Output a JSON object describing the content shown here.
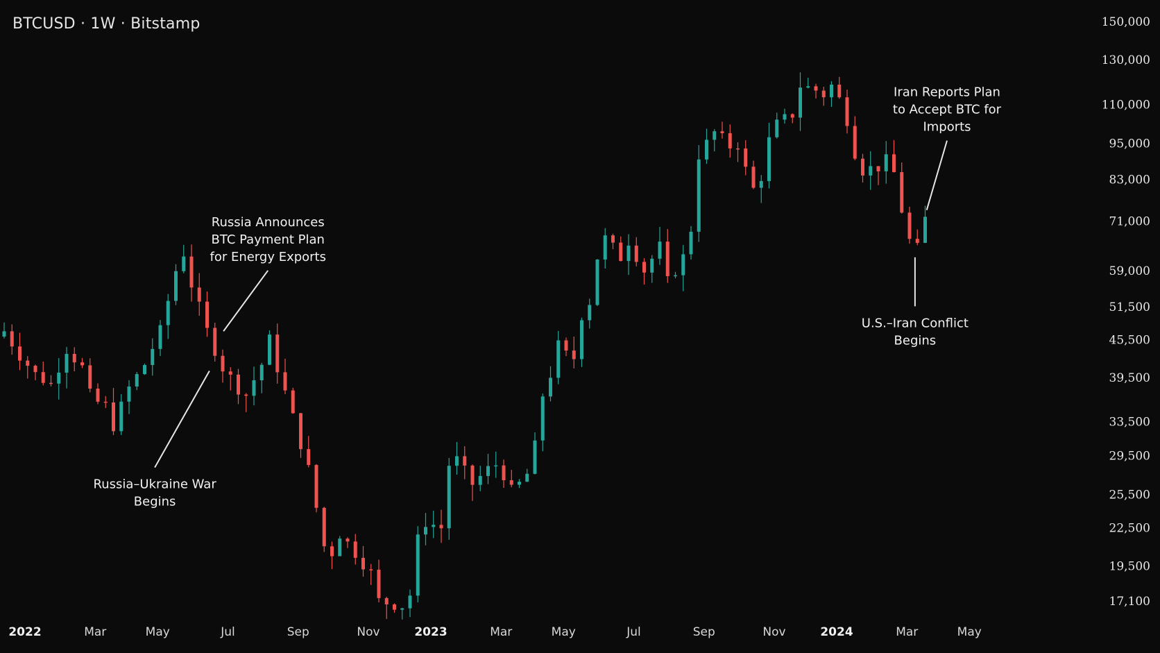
{
  "header": {
    "title": "BTCUSD · 1W · Bitstamp"
  },
  "chart_data": {
    "type": "candlestick",
    "symbol": "BTCUSD",
    "interval": "1W",
    "exchange": "Bitstamp",
    "y_scale": "log",
    "ylim": [
      16000,
      155000
    ],
    "grid": false,
    "y_ticks": [
      {
        "value": 150000,
        "label": "150,000"
      },
      {
        "value": 130000,
        "label": "130,000"
      },
      {
        "value": 110000,
        "label": "110,000"
      },
      {
        "value": 95000,
        "label": "95,000"
      },
      {
        "value": 83000,
        "label": "83,000"
      },
      {
        "value": 71000,
        "label": "71,000"
      },
      {
        "value": 59000,
        "label": "59,000"
      },
      {
        "value": 51500,
        "label": "51,500"
      },
      {
        "value": 45500,
        "label": "45,500"
      },
      {
        "value": 39500,
        "label": "39,500"
      },
      {
        "value": 33500,
        "label": "33,500"
      },
      {
        "value": 29500,
        "label": "29,500"
      },
      {
        "value": 25500,
        "label": "25,500"
      },
      {
        "value": 22500,
        "label": "22,500"
      },
      {
        "value": 19500,
        "label": "19,500"
      },
      {
        "value": 17100,
        "label": "17,100"
      }
    ],
    "x_ticks": [
      {
        "week": 0,
        "label": "2022",
        "bold": true
      },
      {
        "week": 9,
        "label": "Mar",
        "bold": false
      },
      {
        "week": 17,
        "label": "May",
        "bold": false
      },
      {
        "week": 26,
        "label": "Jul",
        "bold": false
      },
      {
        "week": 35,
        "label": "Sep",
        "bold": false
      },
      {
        "week": 44,
        "label": "Nov",
        "bold": false
      },
      {
        "week": 52,
        "label": "2023",
        "bold": true
      },
      {
        "week": 61,
        "label": "Mar",
        "bold": false
      },
      {
        "week": 69,
        "label": "May",
        "bold": false
      },
      {
        "week": 78,
        "label": "Jul",
        "bold": false
      },
      {
        "week": 87,
        "label": "Sep",
        "bold": false
      },
      {
        "week": 96,
        "label": "Nov",
        "bold": false
      },
      {
        "week": 104,
        "label": "2024",
        "bold": true
      },
      {
        "week": 113,
        "label": "Mar",
        "bold": false
      },
      {
        "week": 121,
        "label": "May",
        "bold": false
      }
    ],
    "colors": {
      "up": "#26a69a",
      "down": "#ef5350",
      "background": "#0b0b0b"
    },
    "close_path": [
      [
        0,
        47000
      ],
      [
        2,
        43000
      ],
      [
        4,
        40000
      ],
      [
        6,
        38500
      ],
      [
        8,
        44000
      ],
      [
        10,
        41000
      ],
      [
        11,
        37000
      ],
      [
        12,
        36000
      ],
      [
        13,
        35500
      ],
      [
        14,
        33000
      ],
      [
        16,
        38000
      ],
      [
        18,
        41500
      ],
      [
        20,
        47000
      ],
      [
        22,
        59000
      ],
      [
        23,
        63000
      ],
      [
        24,
        56000
      ],
      [
        26,
        47000
      ],
      [
        28,
        41000
      ],
      [
        30,
        38000
      ],
      [
        31,
        37000
      ],
      [
        33,
        41500
      ],
      [
        34,
        45500
      ],
      [
        35,
        41000
      ],
      [
        37,
        34000
      ],
      [
        39,
        28000
      ],
      [
        41,
        21000
      ],
      [
        42,
        20500
      ],
      [
        43,
        22000
      ],
      [
        45,
        20500
      ],
      [
        47,
        19000
      ],
      [
        48,
        17100
      ],
      [
        51,
        16800
      ],
      [
        52,
        17500
      ],
      [
        53,
        21500
      ],
      [
        54,
        23000
      ],
      [
        56,
        22500
      ],
      [
        57,
        28500
      ],
      [
        58,
        29000
      ],
      [
        60,
        26500
      ],
      [
        62,
        28000
      ],
      [
        63,
        28500
      ],
      [
        64,
        27500
      ],
      [
        65,
        25800
      ],
      [
        66,
        26500
      ],
      [
        67,
        27500
      ],
      [
        68,
        30500
      ],
      [
        69,
        37000
      ],
      [
        70,
        40000
      ],
      [
        71,
        44500
      ],
      [
        72,
        43000
      ],
      [
        73,
        42500
      ],
      [
        74,
        50000
      ],
      [
        75,
        52500
      ],
      [
        76,
        62000
      ],
      [
        77,
        66500
      ],
      [
        79,
        62000
      ],
      [
        80,
        66000
      ],
      [
        82,
        59000
      ],
      [
        84,
        64500
      ],
      [
        85,
        56500
      ],
      [
        87,
        62000
      ],
      [
        88,
        69000
      ],
      [
        89,
        91000
      ],
      [
        91,
        99000
      ],
      [
        93,
        94000
      ],
      [
        94,
        95000
      ],
      [
        95,
        86000
      ],
      [
        96,
        80000
      ],
      [
        97,
        84000
      ],
      [
        98,
        96000
      ],
      [
        99,
        102000
      ],
      [
        101,
        106000
      ],
      [
        102,
        118000
      ],
      [
        103,
        117000
      ],
      [
        104,
        116000
      ],
      [
        105,
        114000
      ],
      [
        106,
        118000
      ],
      [
        107,
        112000
      ],
      [
        108,
        104000
      ],
      [
        109,
        92000
      ],
      [
        110,
        86000
      ],
      [
        112,
        87000
      ],
      [
        113,
        89000
      ],
      [
        114,
        85000
      ],
      [
        115,
        74000
      ],
      [
        116,
        66000
      ],
      [
        117,
        64000
      ],
      [
        118,
        71500
      ]
    ],
    "annotations": [
      {
        "week": 26.3,
        "price": 40500,
        "label_week": 19.3,
        "label_price": 28200,
        "lines": [
          "Russia–Ukraine War",
          "Begins"
        ],
        "placement": "below"
      },
      {
        "week": 28.1,
        "price": 47000,
        "label_week": 33.8,
        "label_price": 59000,
        "lines": [
          "Russia Announces",
          "BTC Payment Plan",
          "for Energy Exports"
        ],
        "placement": "above"
      },
      {
        "week": 116.7,
        "price": 62000,
        "label_week": 116.7,
        "label_price": 51600,
        "lines": [
          "U.S.–Iran Conflict",
          "Begins"
        ],
        "placement": "below"
      },
      {
        "week": 118.2,
        "price": 74000,
        "label_week": 120.8,
        "label_price": 96000,
        "lines": [
          "Iran Reports Plan",
          "to Accept BTC for",
          "Imports"
        ],
        "placement": "above"
      }
    ]
  }
}
